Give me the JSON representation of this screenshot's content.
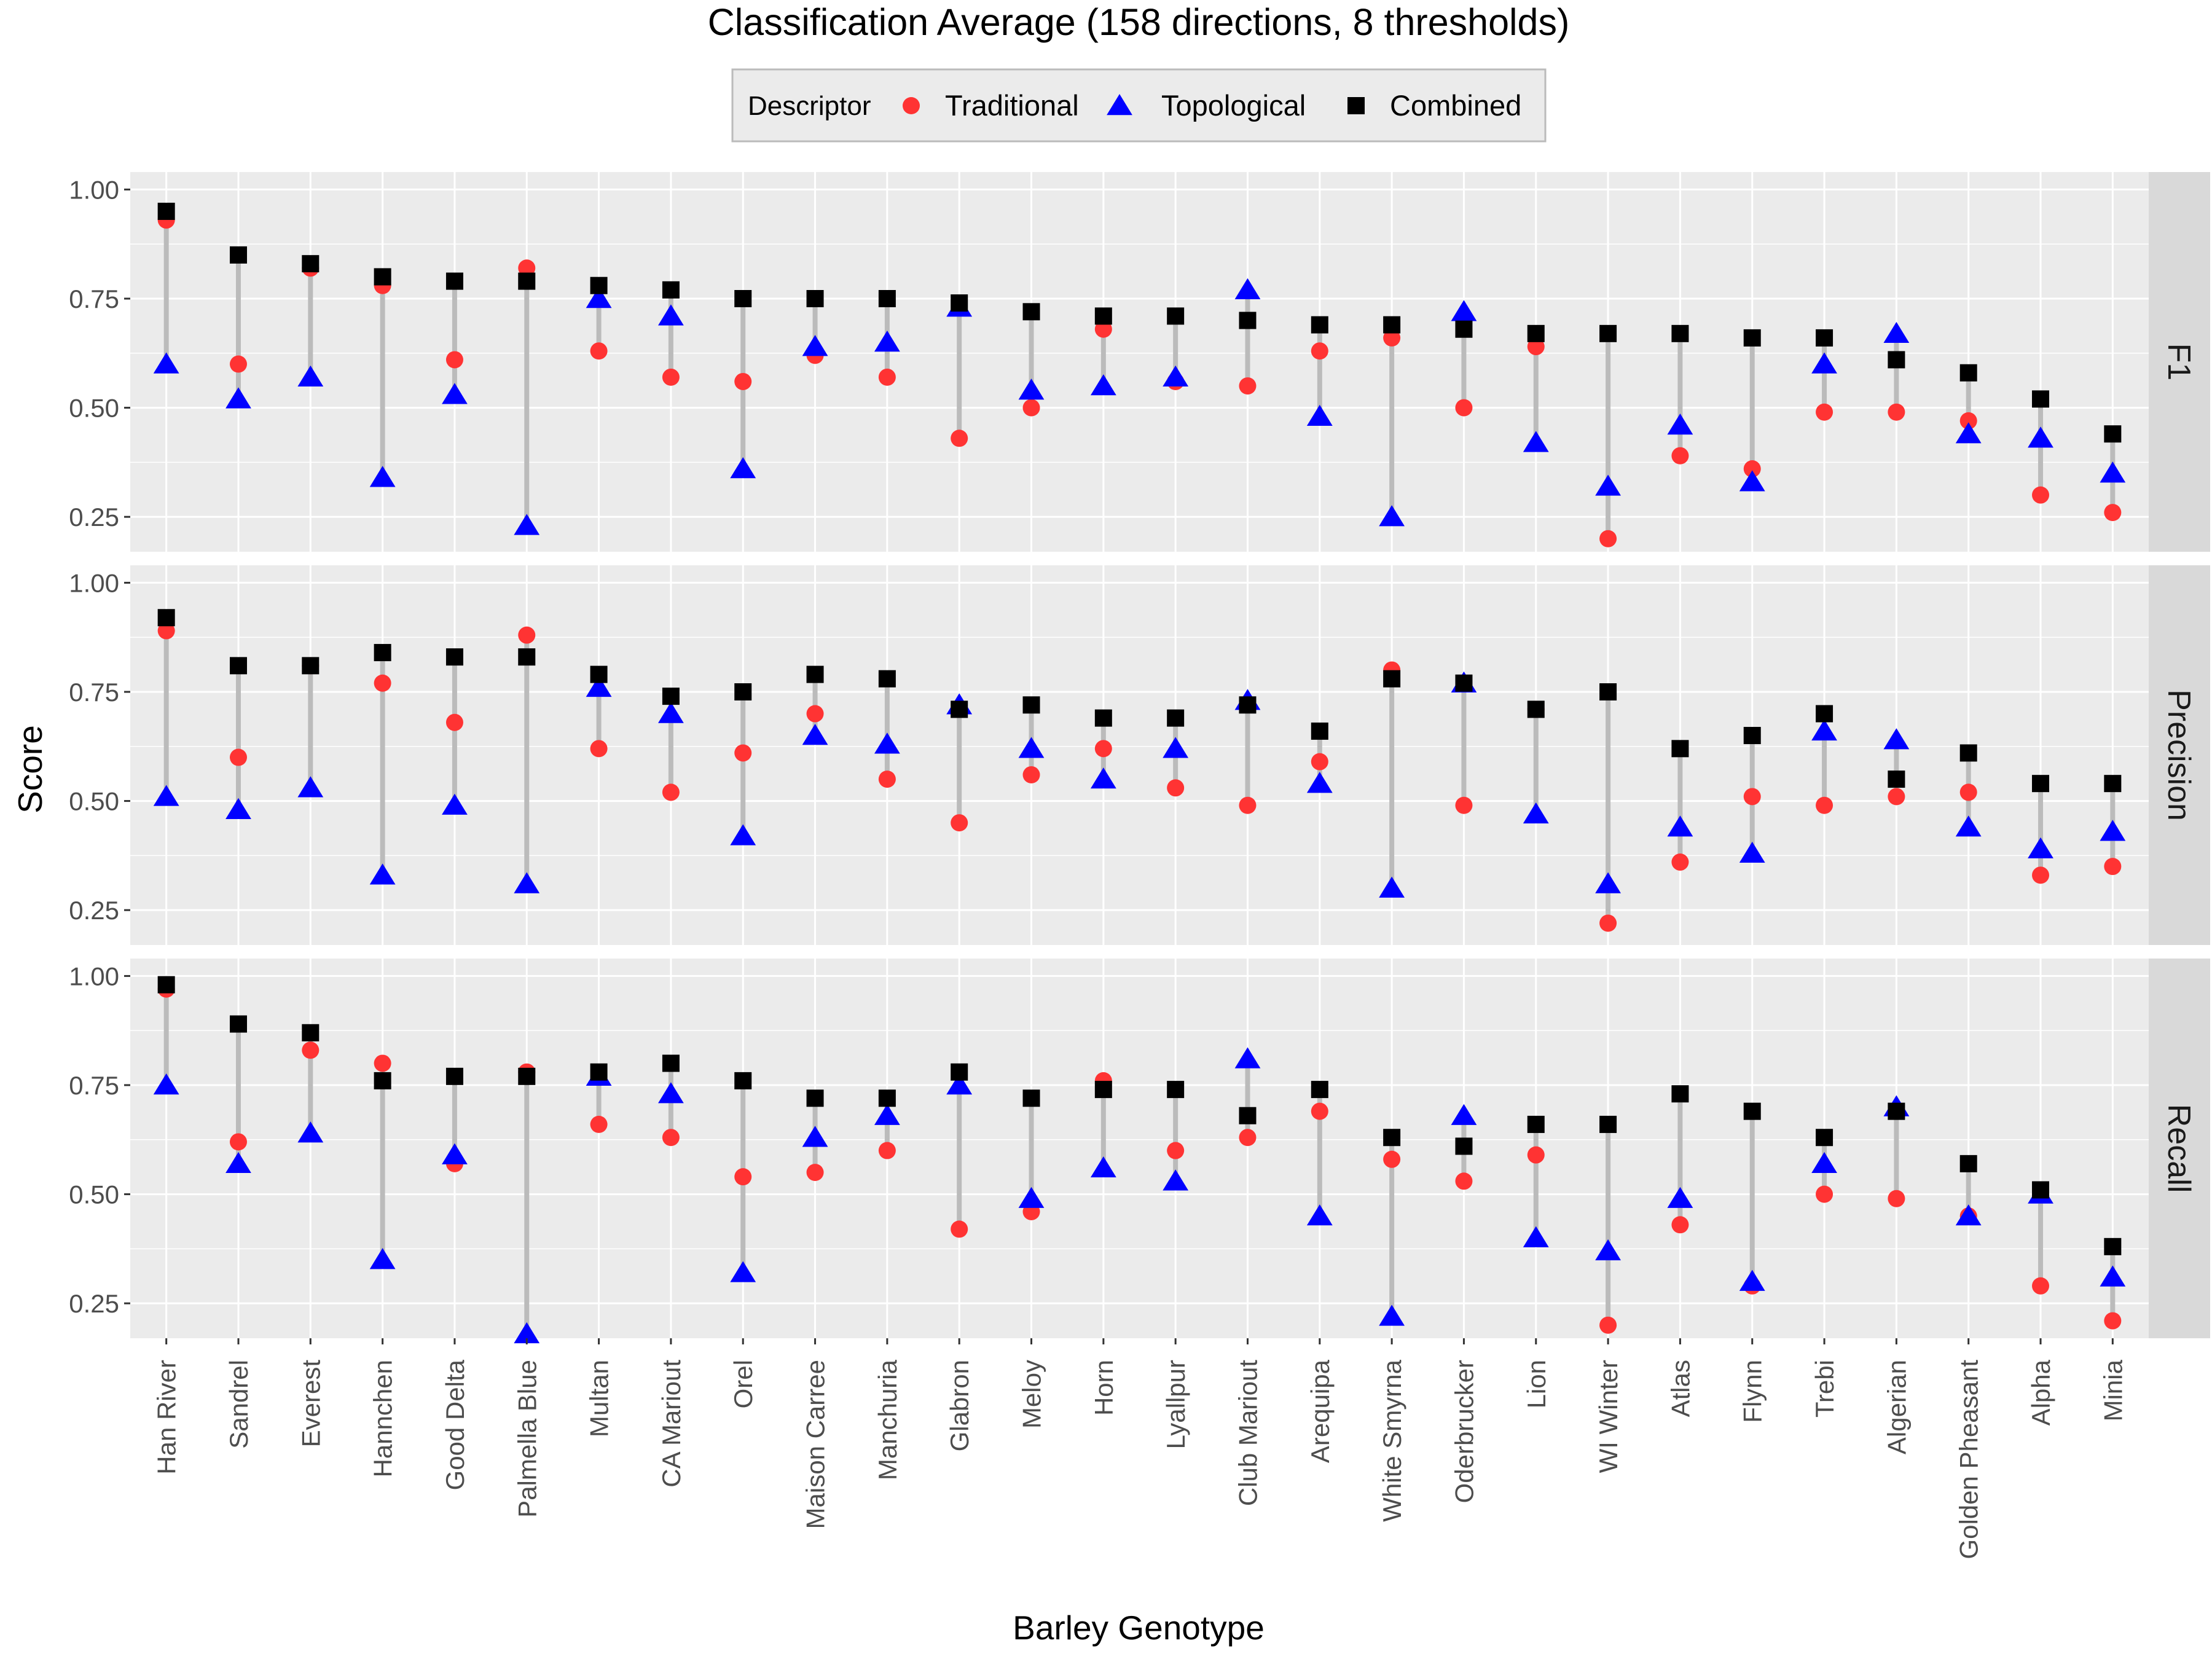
{
  "chart_data": {
    "type": "scatter",
    "title": "Classification Average (158 directions, 8 thresholds)",
    "xlabel": "Barley Genotype",
    "ylabel": "Score",
    "ylim": [
      0.17,
      1.04
    ],
    "y_ticks": [
      "0.25",
      "0.50",
      "0.75",
      "1.00"
    ],
    "y_tick_values": [
      0.25,
      0.5,
      0.75,
      1.0
    ],
    "legend": {
      "title": "Descriptor",
      "position": "top",
      "entries": [
        {
          "name": "Traditional",
          "color": "#ff3333",
          "shape": "circle"
        },
        {
          "name": "Topological",
          "color": "#0000ff",
          "shape": "triangle"
        },
        {
          "name": "Combined",
          "color": "#000000",
          "shape": "square"
        }
      ]
    },
    "range_line_color": "#bbbbbb",
    "panel_background": "#ebebeb",
    "strip_background": "#d9d9d9",
    "grid": true,
    "categories": [
      "Han River",
      "Sandrel",
      "Everest",
      "Hannchen",
      "Good Delta",
      "Palmella Blue",
      "Multan",
      "CA Mariout",
      "Orel",
      "Maison Carree",
      "Manchuria",
      "Glabron",
      "Meloy",
      "Horn",
      "Lyallpur",
      "Club Mariout",
      "Arequipa",
      "White Smyrna",
      "Oderbrucker",
      "Lion",
      "WI Winter",
      "Atlas",
      "Flynn",
      "Trebi",
      "Algerian",
      "Golden Pheasant",
      "Alpha",
      "Minia"
    ],
    "facets": [
      {
        "name": "F1",
        "series": [
          {
            "name": "Traditional",
            "values": [
              0.93,
              0.6,
              0.82,
              0.78,
              0.61,
              0.82,
              0.63,
              0.57,
              0.56,
              0.62,
              0.57,
              0.43,
              0.5,
              0.68,
              0.56,
              0.55,
              0.63,
              0.66,
              0.5,
              0.64,
              0.2,
              0.39,
              0.36,
              0.49,
              0.49,
              0.47,
              0.3,
              0.26
            ]
          },
          {
            "name": "Topological",
            "values": [
              0.6,
              0.52,
              0.57,
              0.34,
              0.53,
              0.23,
              0.75,
              0.71,
              0.36,
              0.64,
              0.65,
              0.73,
              0.54,
              0.55,
              0.57,
              0.77,
              0.48,
              0.25,
              0.72,
              0.42,
              0.32,
              0.46,
              0.33,
              0.6,
              0.67,
              0.44,
              0.43,
              0.35
            ]
          },
          {
            "name": "Combined",
            "values": [
              0.95,
              0.85,
              0.83,
              0.8,
              0.79,
              0.79,
              0.78,
              0.77,
              0.75,
              0.75,
              0.75,
              0.74,
              0.72,
              0.71,
              0.71,
              0.7,
              0.69,
              0.69,
              0.68,
              0.67,
              0.67,
              0.67,
              0.66,
              0.66,
              0.61,
              0.58,
              0.52,
              0.44
            ]
          }
        ]
      },
      {
        "name": "Precision",
        "series": [
          {
            "name": "Traditional",
            "values": [
              0.89,
              0.6,
              0.81,
              0.77,
              0.68,
              0.88,
              0.62,
              0.52,
              0.61,
              0.7,
              0.55,
              0.45,
              0.56,
              0.62,
              0.53,
              0.49,
              0.59,
              0.8,
              0.49,
              0.71,
              0.22,
              0.36,
              0.51,
              0.49,
              0.51,
              0.52,
              0.33,
              0.35
            ]
          },
          {
            "name": "Topological",
            "values": [
              0.51,
              0.48,
              0.53,
              0.33,
              0.49,
              0.31,
              0.76,
              0.7,
              0.42,
              0.65,
              0.63,
              0.72,
              0.62,
              0.55,
              0.62,
              0.73,
              0.54,
              0.3,
              0.77,
              0.47,
              0.31,
              0.44,
              0.38,
              0.66,
              0.64,
              0.44,
              0.39,
              0.43
            ]
          },
          {
            "name": "Combined",
            "values": [
              0.92,
              0.81,
              0.81,
              0.84,
              0.83,
              0.83,
              0.79,
              0.74,
              0.75,
              0.79,
              0.78,
              0.71,
              0.72,
              0.69,
              0.69,
              0.72,
              0.66,
              0.78,
              0.77,
              0.71,
              0.75,
              0.62,
              0.65,
              0.7,
              0.55,
              0.61,
              0.54,
              0.54
            ]
          }
        ]
      },
      {
        "name": "Recall",
        "series": [
          {
            "name": "Traditional",
            "values": [
              0.97,
              0.62,
              0.83,
              0.8,
              0.57,
              0.78,
              0.66,
              0.63,
              0.54,
              0.55,
              0.6,
              0.42,
              0.46,
              0.76,
              0.6,
              0.63,
              0.69,
              0.58,
              0.53,
              0.59,
              0.2,
              0.43,
              0.29,
              0.5,
              0.49,
              0.45,
              0.29,
              0.21
            ]
          },
          {
            "name": "Topological",
            "values": [
              0.75,
              0.57,
              0.64,
              0.35,
              0.59,
              0.18,
              0.77,
              0.73,
              0.32,
              0.63,
              0.68,
              0.75,
              0.49,
              0.56,
              0.53,
              0.81,
              0.45,
              0.22,
              0.68,
              0.4,
              0.37,
              0.49,
              0.3,
              0.57,
              0.7,
              0.45,
              0.5,
              0.31
            ]
          },
          {
            "name": "Combined",
            "values": [
              0.98,
              0.89,
              0.87,
              0.76,
              0.77,
              0.77,
              0.78,
              0.8,
              0.76,
              0.72,
              0.72,
              0.78,
              0.72,
              0.74,
              0.74,
              0.68,
              0.74,
              0.63,
              0.61,
              0.66,
              0.66,
              0.73,
              0.69,
              0.63,
              0.69,
              0.57,
              0.51,
              0.38
            ]
          }
        ]
      }
    ]
  }
}
